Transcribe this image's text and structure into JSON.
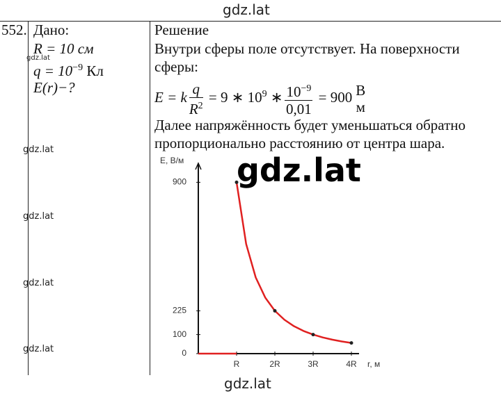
{
  "header": {
    "watermark": "gdz.lat"
  },
  "given": {
    "number": "552.",
    "title": "Дано:",
    "radius": "R = 10 см",
    "charge": "q = 10",
    "charge_exp": "−9",
    "charge_unit": "Кл",
    "question": "E(r)−?",
    "small_watermark": "gdz.lat"
  },
  "watermarks": [
    "gdz.lat",
    "gdz.lat",
    "gdz.lat",
    "gdz.lat"
  ],
  "big_watermark": "gdz.lat",
  "solution": {
    "title": "Решение",
    "line1": "Внутри сферы поле отсутствует. На поверхности",
    "line2": "сферы:",
    "formula": {
      "lhs": "E = k",
      "q": "q",
      "R": "R",
      "R_exp": "2",
      "mid": "= 9 ∗ 10",
      "mid_exp": "9",
      "times": "∗",
      "num": "10",
      "num_exp": "−9",
      "den": "0,01",
      "result": "= 900",
      "unit_num": "В",
      "unit_den": "м"
    },
    "line3": "Далее напряжённость будет уменьшаться обратно",
    "line4": "пропорционально расстоянию от центра шара."
  },
  "chart_data": {
    "type": "line",
    "y_label": "E, В/м",
    "x_label": "r, м",
    "xlim": [
      0,
      4.2
    ],
    "ylim": [
      0,
      1000
    ],
    "xticks": [
      {
        "value": 1,
        "label": "R"
      },
      {
        "value": 2,
        "label": "2R"
      },
      {
        "value": 3,
        "label": "3R"
      },
      {
        "value": 4,
        "label": "4R"
      }
    ],
    "yticks": [
      0,
      100,
      225,
      900
    ],
    "series": [
      {
        "color": "#e02020",
        "x": [
          1,
          1.25,
          1.5,
          1.75,
          2,
          2.25,
          2.5,
          2.75,
          3,
          3.25,
          3.5,
          3.75,
          4
        ],
        "values": [
          900,
          576,
          400,
          294,
          225,
          178,
          144,
          119,
          100,
          85,
          73.5,
          64,
          56
        ]
      },
      {
        "color": "#222222",
        "x": [
          1,
          2,
          3,
          4
        ],
        "values": [
          900,
          225,
          100,
          56
        ],
        "markers": true
      },
      {
        "color": "#e02020",
        "x": [
          0,
          1
        ],
        "values": [
          0,
          0
        ]
      }
    ]
  },
  "footer": {
    "watermark": "gdz.lat"
  }
}
